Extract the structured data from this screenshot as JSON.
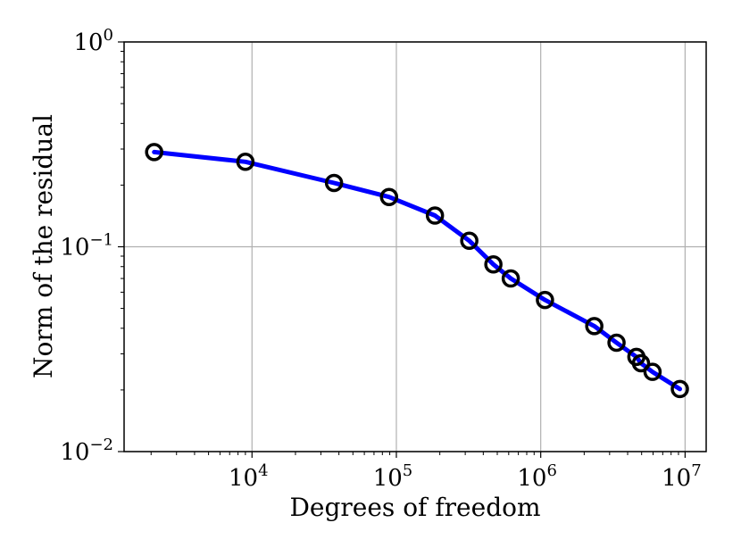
{
  "chart_data": {
    "type": "line",
    "title": "",
    "xlabel": "Degrees of freedom",
    "ylabel": "Norm of the residual",
    "xscale": "log",
    "yscale": "log",
    "xlim": [
      1300,
      14000000
    ],
    "ylim": [
      0.01,
      1
    ],
    "grid": true,
    "legend": "none",
    "x_ticks": [
      {
        "value": 10000,
        "base": "10",
        "exp": "4"
      },
      {
        "value": 100000,
        "base": "10",
        "exp": "5"
      },
      {
        "value": 1000000,
        "base": "10",
        "exp": "6"
      },
      {
        "value": 10000000,
        "base": "10",
        "exp": "7"
      }
    ],
    "y_ticks": [
      {
        "value": 1,
        "base": "10",
        "exp": "0"
      },
      {
        "value": 0.1,
        "base": "10",
        "exp": "−1"
      },
      {
        "value": 0.01,
        "base": "10",
        "exp": "−2"
      }
    ],
    "series": [
      {
        "line_color": "#0000ff",
        "marker_color": "#000000",
        "marker": "open-circle",
        "x": [
          2100,
          9000,
          37000,
          89000,
          185000,
          320000,
          470000,
          620000,
          1070000,
          2350000,
          3350000,
          4600000,
          4950000,
          5950000,
          9200000
        ],
        "y": [
          0.29,
          0.26,
          0.205,
          0.175,
          0.142,
          0.107,
          0.082,
          0.07,
          0.055,
          0.041,
          0.034,
          0.029,
          0.027,
          0.0245,
          0.0202
        ]
      }
    ]
  }
}
